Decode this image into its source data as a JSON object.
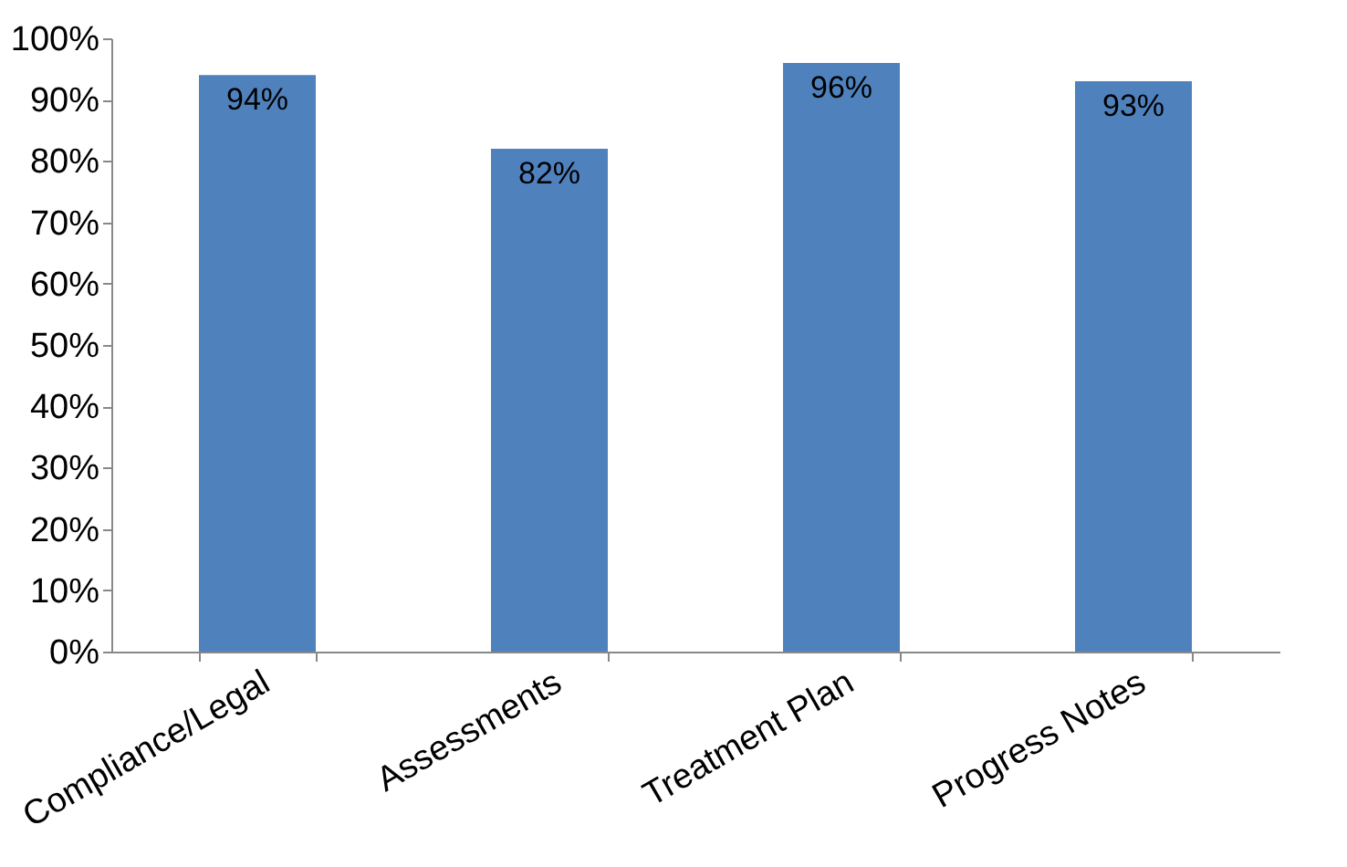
{
  "chart_data": {
    "type": "bar",
    "categories": [
      "Compliance/Legal",
      "Assessments",
      "Treatment Plan",
      "Progress Notes"
    ],
    "values": [
      94,
      82,
      96,
      93
    ],
    "value_labels": [
      "94%",
      "82%",
      "96%",
      "93%"
    ],
    "color": "#4f81bd",
    "ylim": [
      0,
      100
    ],
    "yticks": [
      {
        "value": 0,
        "label": "0%"
      },
      {
        "value": 10,
        "label": "10%"
      },
      {
        "value": 20,
        "label": "20%"
      },
      {
        "value": 30,
        "label": "30%"
      },
      {
        "value": 40,
        "label": "40%"
      },
      {
        "value": 50,
        "label": "50%"
      },
      {
        "value": 60,
        "label": "60%"
      },
      {
        "value": 70,
        "label": "70%"
      },
      {
        "value": 80,
        "label": "80%"
      },
      {
        "value": 90,
        "label": "90%"
      },
      {
        "value": 100,
        "label": "100%"
      }
    ],
    "grid": false
  }
}
